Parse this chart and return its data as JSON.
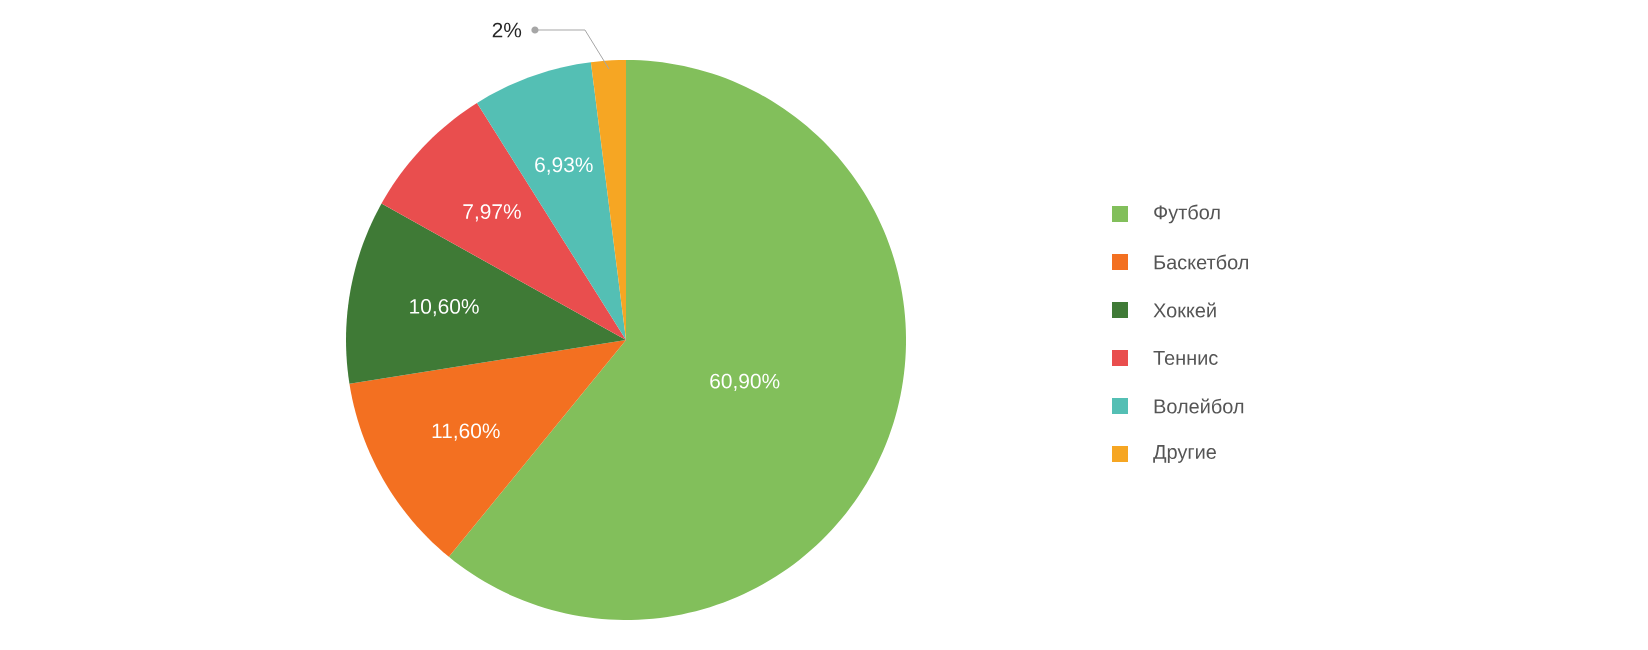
{
  "chart_data": {
    "type": "pie",
    "categories": [
      "Футбол",
      "Баскетбол",
      "Хоккей",
      "Теннис",
      "Волейбол",
      "Другие"
    ],
    "values": [
      60.9,
      11.6,
      10.6,
      7.97,
      6.93,
      2
    ],
    "value_labels": [
      "60,90%",
      "11,60%",
      "10,60%",
      "7,97%",
      "6,93%",
      "2%"
    ],
    "colors": [
      "#82bf5b",
      "#f37021",
      "#3f7a36",
      "#e94e4e",
      "#54bfb4",
      "#f6a623"
    ],
    "legend": "right"
  }
}
